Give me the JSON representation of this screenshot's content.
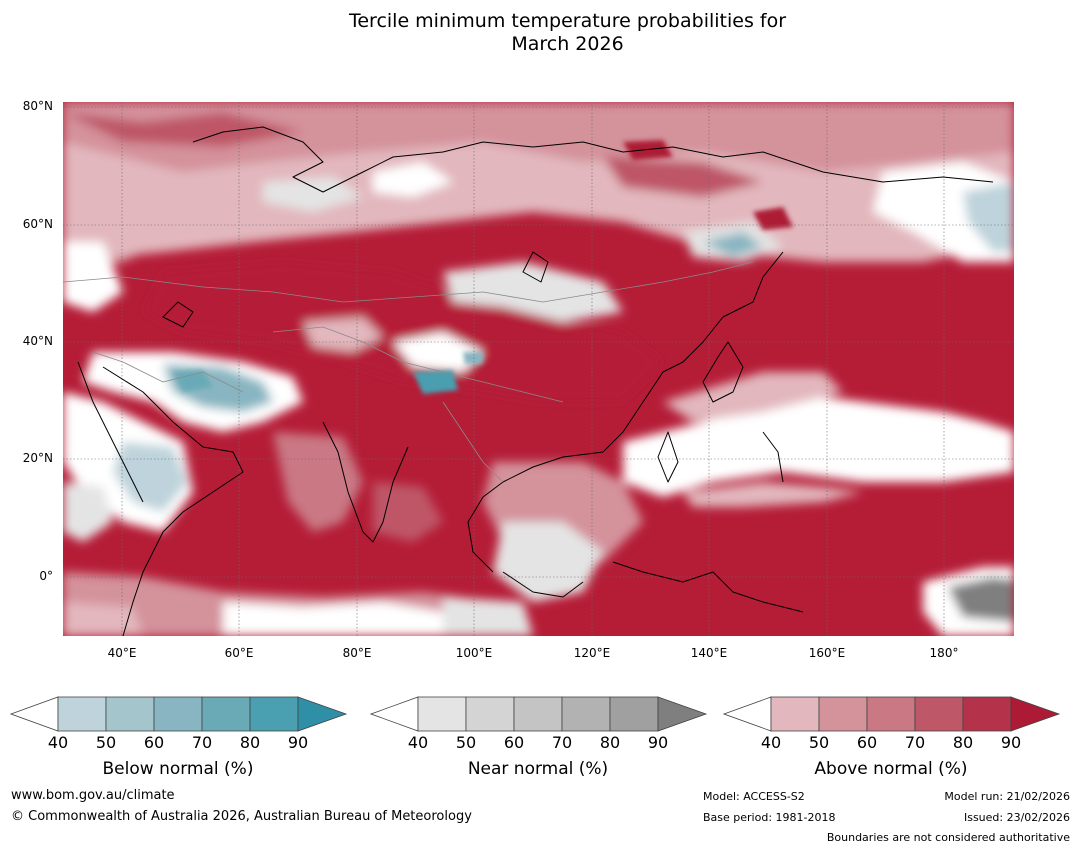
{
  "title": {
    "line1": "Tercile minimum temperature probabilities for",
    "line2": "March 2026"
  },
  "map": {
    "lat_labels": [
      "80°N",
      "60°N",
      "40°N",
      "20°N",
      "0°"
    ],
    "lon_labels": [
      "40°E",
      "60°E",
      "80°E",
      "100°E",
      "120°E",
      "140°E",
      "160°E",
      "180°"
    ]
  },
  "colorbars": [
    {
      "label": "Below normal (%)",
      "ticks": [
        "40",
        "50",
        "60",
        "70",
        "80",
        "90"
      ],
      "colors": [
        "#ffffff",
        "#bed3db",
        "#a5c5cc",
        "#88b5c1",
        "#6aaab7",
        "#4a9fb0",
        "#2f8fa6"
      ]
    },
    {
      "label": "Near normal (%)",
      "ticks": [
        "40",
        "50",
        "60",
        "70",
        "80",
        "90"
      ],
      "colors": [
        "#ffffff",
        "#e4e4e4",
        "#d4d4d4",
        "#c4c4c4",
        "#b2b2b2",
        "#a0a0a0",
        "#7f7f7f"
      ]
    },
    {
      "label": "Above normal (%)",
      "ticks": [
        "40",
        "50",
        "60",
        "70",
        "80",
        "90"
      ],
      "colors": [
        "#ffffff",
        "#e2b7bd",
        "#d4929b",
        "#c97884",
        "#be5767",
        "#b5334a",
        "#ad1a35"
      ]
    }
  ],
  "footer": {
    "website": "www.bom.gov.au/climate",
    "copyright": "© Commonwealth of Australia 2026, Australian Bureau of Meteorology",
    "model": "Model: ACCESS-S2",
    "base_period": "Base period: 1981-2018",
    "model_run": "Model run: 21/02/2026",
    "issued": "Issued: 23/02/2026",
    "disclaimer": "Boundaries are not considered authoritative"
  }
}
